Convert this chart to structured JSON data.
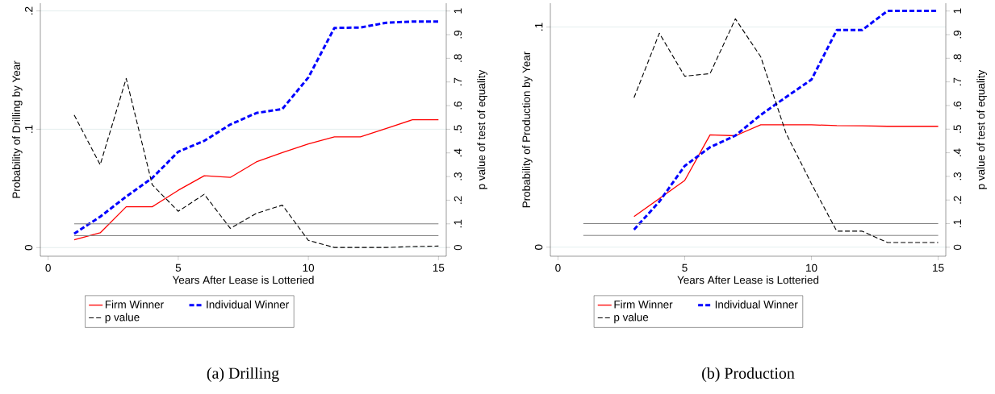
{
  "chart_data": [
    {
      "type": "line",
      "title": "(a) Drilling",
      "xlabel": "Years After Lease is Lotteried",
      "ylabel": "Probability of Drilling by Year",
      "y2label": "p value of test of equality",
      "xlim": [
        -0.3,
        15.3
      ],
      "xticks": [
        0,
        5,
        10,
        15
      ],
      "ylim": [
        -0.0073,
        0.2065
      ],
      "yticks": [
        {
          "value": 0,
          "label": "0"
        },
        {
          "value": 0.1,
          "label": ".1"
        },
        {
          "value": 0.2,
          "label": ".2"
        }
      ],
      "y2lim": [
        -0.037,
        1.033
      ],
      "y2ticks": [
        {
          "value": 0,
          "label": "0"
        },
        {
          "value": 0.1,
          "label": ".1"
        },
        {
          "value": 0.2,
          "label": ".2"
        },
        {
          "value": 0.3,
          "label": ".3"
        },
        {
          "value": 0.4,
          "label": ".4"
        },
        {
          "value": 0.5,
          "label": ".5"
        },
        {
          "value": 0.6,
          "label": ".6"
        },
        {
          "value": 0.7,
          "label": ".7"
        },
        {
          "value": 0.8,
          "label": ".8"
        },
        {
          "value": 0.9,
          "label": ".9"
        },
        {
          "value": 1,
          "label": "1"
        }
      ],
      "grid": "y",
      "legend": "bottom",
      "series": [
        {
          "name": "Firm Winner",
          "color": "#ff0000",
          "line_style": "solid",
          "x": [
            1,
            2,
            3,
            4,
            5,
            6,
            7,
            8,
            9,
            10,
            11,
            12,
            13,
            14,
            15
          ],
          "values": [
            0.0065,
            0.0125,
            0.0345,
            0.0345,
            0.0484,
            0.0607,
            0.0593,
            0.0724,
            0.0803,
            0.0876,
            0.0936,
            0.0936,
            0.1007,
            0.108,
            0.108
          ]
        },
        {
          "name": "Individual Winner",
          "color": "#0000ff",
          "line_style": "dashed",
          "x": [
            1,
            2,
            3,
            4,
            5,
            6,
            7,
            8,
            9,
            10,
            11,
            12,
            13,
            14,
            15
          ],
          "values": [
            0.0118,
            0.0261,
            0.0431,
            0.0588,
            0.081,
            0.0902,
            0.104,
            0.1137,
            0.1171,
            0.1438,
            0.1856,
            0.186,
            0.19,
            0.191,
            0.191
          ]
        },
        {
          "name": "p value",
          "color": "#000000",
          "line_style": "dashed",
          "axis": "y2",
          "x": [
            1,
            2,
            3,
            4,
            5,
            6,
            7,
            8,
            9,
            10,
            11,
            12,
            13,
            14,
            15
          ],
          "values": [
            0.56,
            0.35,
            0.715,
            0.265,
            0.153,
            0.225,
            0.081,
            0.144,
            0.179,
            0.03,
            0,
            0,
            0,
            0.004,
            0.006
          ]
        }
      ],
      "ref_lines": [
        {
          "axis": "y2",
          "value": 0.1,
          "color": "#808080"
        },
        {
          "axis": "y2",
          "value": 0.05,
          "color": "#808080"
        }
      ]
    },
    {
      "type": "line",
      "title": "(b) Production",
      "xlabel": "Years After Lease is Lotteried",
      "ylabel": "Probability of Production by Year",
      "y2label": "p value of test of equality",
      "xlim": [
        -0.3,
        15.3
      ],
      "xticks": [
        0,
        5,
        10,
        15
      ],
      "ylim": [
        -0.0041,
        0.1108
      ],
      "yticks": [
        {
          "value": 0,
          "label": "0"
        },
        {
          "value": 0.1,
          "label": ".1"
        }
      ],
      "y2lim": [
        -0.038,
        1.033
      ],
      "y2ticks": [
        {
          "value": 0,
          "label": "0"
        },
        {
          "value": 0.1,
          "label": ".1"
        },
        {
          "value": 0.2,
          "label": ".2"
        },
        {
          "value": 0.3,
          "label": ".3"
        },
        {
          "value": 0.4,
          "label": ".4"
        },
        {
          "value": 0.5,
          "label": ".5"
        },
        {
          "value": 0.6,
          "label": ".6"
        },
        {
          "value": 0.7,
          "label": ".7"
        },
        {
          "value": 0.8,
          "label": ".8"
        },
        {
          "value": 0.9,
          "label": ".9"
        },
        {
          "value": 1,
          "label": "1"
        }
      ],
      "grid": "y",
      "legend": "bottom",
      "series": [
        {
          "name": "Firm Winner",
          "color": "#ff0000",
          "line_style": "solid",
          "x": [
            3,
            4,
            5,
            6,
            7,
            8,
            9,
            10,
            11,
            12,
            13,
            14,
            15
          ],
          "values": [
            0.0139,
            0.0221,
            0.0303,
            0.051,
            0.0506,
            0.0556,
            0.0556,
            0.0556,
            0.0552,
            0.0551,
            0.0549,
            0.0549,
            0.0549
          ]
        },
        {
          "name": "Individual Winner",
          "color": "#0000ff",
          "line_style": "dashed",
          "x": [
            3,
            4,
            5,
            6,
            7,
            8,
            9,
            10,
            11,
            12,
            13,
            14,
            15
          ],
          "values": [
            0.008,
            0.0207,
            0.0369,
            0.0454,
            0.0507,
            0.0601,
            0.0682,
            0.0761,
            0.0986,
            0.0986,
            0.1073,
            0.1073,
            0.1073
          ]
        },
        {
          "name": "p value",
          "color": "#000000",
          "line_style": "dashed",
          "axis": "y2",
          "x": [
            3,
            4,
            5,
            6,
            7,
            8,
            9,
            10,
            11,
            12,
            13,
            14,
            15
          ],
          "values": [
            0.633,
            0.906,
            0.724,
            0.735,
            0.967,
            0.806,
            0.482,
            0.269,
            0.068,
            0.068,
            0.02,
            0.02,
            0.02
          ]
        }
      ],
      "ref_lines": [
        {
          "axis": "y2",
          "value": 0.1,
          "color": "#808080"
        },
        {
          "axis": "y2",
          "value": 0.05,
          "color": "#808080"
        }
      ]
    }
  ]
}
